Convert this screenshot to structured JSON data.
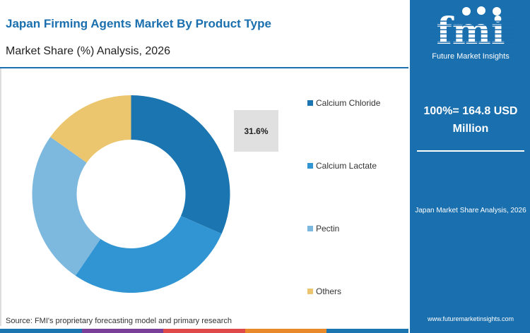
{
  "header": {
    "title": "Japan Firming Agents Market By Product Type",
    "subtitle": "Market Share (%) Analysis, 2026"
  },
  "chart_data": {
    "type": "pie",
    "donut": true,
    "categories": [
      "Calcium Chloride",
      "Calcium Lactate",
      "Pectin",
      "Others"
    ],
    "values": [
      31.6,
      27.9,
      25.3,
      15.2
    ],
    "colors": [
      "#1b75b0",
      "#3195d3",
      "#7db8df",
      "#ecc66e"
    ],
    "data_labels": [
      "31.6%"
    ],
    "legend_position": "right"
  },
  "source": "Source: FMI's proprietary forecasting model and primary research",
  "sidebar": {
    "logo_text": "fmi",
    "logo_subtitle": "Future Market Insights",
    "total": "100%= 164.8 USD Million",
    "analysis": "Japan Market Share Analysis, 2026",
    "url": "www.futuremarketinsights.com"
  },
  "bottom_bar_colors": [
    "#1b75b0",
    "#7a3f98",
    "#e0494a",
    "#e98a2a",
    "#1b75b0"
  ]
}
